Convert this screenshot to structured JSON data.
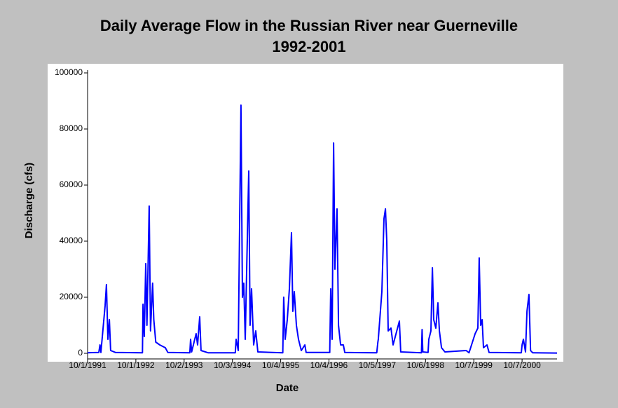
{
  "chart_data": {
    "type": "line",
    "title": "Daily Average Flow in the Russian River near Guerneville",
    "subtitle": "1992-2001",
    "x_label": "Date",
    "y_label": "Discharge (cfs)",
    "xlim": [
      "1991-10-01",
      "2001-06-29"
    ],
    "xticks": [
      {
        "value": "1991-10-01",
        "label": "10/1/1991"
      },
      {
        "value": "1992-10-01",
        "label": "10/1/1992"
      },
      {
        "value": "1993-10-02",
        "label": "10/2/1993"
      },
      {
        "value": "1994-10-03",
        "label": "10/3/1994"
      },
      {
        "value": "1995-10-04",
        "label": "10/4/1995"
      },
      {
        "value": "1996-10-04",
        "label": "10/4/1996"
      },
      {
        "value": "1997-10-05",
        "label": "10/5/1997"
      },
      {
        "value": "1998-10-06",
        "label": "10/6/1998"
      },
      {
        "value": "1999-10-07",
        "label": "10/7/1999"
      },
      {
        "value": "2000-10-07",
        "label": "10/7/2000"
      }
    ],
    "ylim": [
      0,
      100000
    ],
    "yticks": [
      0,
      20000,
      40000,
      60000,
      80000,
      100000
    ],
    "x": [
      "1991-10-01",
      "1991-12-25",
      "1992-01-03",
      "1992-01-10",
      "1992-02-11",
      "1992-02-21",
      "1992-03-03",
      "1992-03-14",
      "1992-03-24",
      "1992-04-30",
      "1992-11-20",
      "1992-11-24",
      "1992-12-04",
      "1992-12-15",
      "1992-12-24",
      "1993-01-10",
      "1993-01-20",
      "1993-02-05",
      "1993-02-14",
      "1993-03-01",
      "1993-03-31",
      "1993-05-12",
      "1993-06-01",
      "1993-11-14",
      "1993-11-20",
      "1993-11-28",
      "1994-01-01",
      "1994-01-12",
      "1994-01-28",
      "1994-02-07",
      "1994-04-01",
      "1994-10-25",
      "1994-10-31",
      "1994-11-16",
      "1994-12-07",
      "1994-12-18",
      "1994-12-28",
      "1995-01-08",
      "1995-02-04",
      "1995-02-14",
      "1995-02-25",
      "1995-03-13",
      "1995-03-29",
      "1995-04-14",
      "1995-10-20",
      "1995-10-27",
      "1995-11-07",
      "1995-11-23",
      "1995-12-09",
      "1995-12-25",
      "1996-01-04",
      "1996-01-15",
      "1996-01-31",
      "1996-02-16",
      "1996-03-08",
      "1996-04-04",
      "1996-04-14",
      "1996-10-10",
      "1996-10-17",
      "1996-10-28",
      "1996-11-08",
      "1996-11-18",
      "1996-12-04",
      "1996-12-15",
      "1996-12-31",
      "1997-01-21",
      "1997-02-01",
      "1997-10-01",
      "1997-10-10",
      "1997-10-13",
      "1997-11-09",
      "1997-11-25",
      "1997-12-06",
      "1997-12-16",
      "1997-12-27",
      "1998-01-17",
      "1998-02-02",
      "1998-03-22",
      "1998-04-01",
      "1998-09-05",
      "1998-09-10",
      "1998-09-15",
      "1998-10-25",
      "1998-10-31",
      "1998-11-16",
      "1998-11-27",
      "1998-12-07",
      "1998-12-23",
      "1999-01-08",
      "1999-01-19",
      "1999-02-04",
      "1999-03-02",
      "1999-08-10",
      "1999-09-01",
      "1999-10-17",
      "1999-11-07",
      "1999-11-17",
      "1999-11-28",
      "1999-12-09",
      "1999-12-19",
      "2000-01-15",
      "2000-01-31",
      "2000-10-01",
      "2000-10-07",
      "2000-10-17",
      "2000-11-02",
      "2000-11-13",
      "2000-11-28",
      "2000-12-10",
      "2000-12-26",
      "2001-06-29"
    ],
    "series": [
      {
        "name": "Discharge",
        "color": "#0000ff",
        "values": [
          200,
          300,
          3000,
          300,
          17000,
          24500,
          5000,
          12000,
          1000,
          300,
          200,
          17500,
          6000,
          32000,
          10000,
          52500,
          8000,
          25000,
          12000,
          4000,
          3000,
          2000,
          300,
          200,
          5000,
          500,
          7000,
          3000,
          13000,
          1000,
          200,
          200,
          5000,
          1000,
          88500,
          20000,
          25000,
          5000,
          65000,
          10000,
          23000,
          3000,
          8000,
          500,
          200,
          20000,
          5000,
          12000,
          23000,
          43000,
          15000,
          22000,
          10000,
          5000,
          1000,
          3000,
          300,
          300,
          23000,
          5000,
          75000,
          30000,
          51500,
          10000,
          3000,
          3000,
          300,
          200,
          4000,
          5000,
          22000,
          48000,
          51500,
          40000,
          8000,
          9000,
          3000,
          11500,
          500,
          200,
          8500,
          500,
          300,
          5000,
          8000,
          30500,
          12000,
          9000,
          18000,
          8000,
          2000,
          500,
          1000,
          200,
          7000,
          9000,
          34000,
          10000,
          12000,
          2000,
          3000,
          300,
          200,
          3000,
          5000,
          500,
          15000,
          21000,
          1000,
          200,
          100
        ]
      }
    ]
  }
}
